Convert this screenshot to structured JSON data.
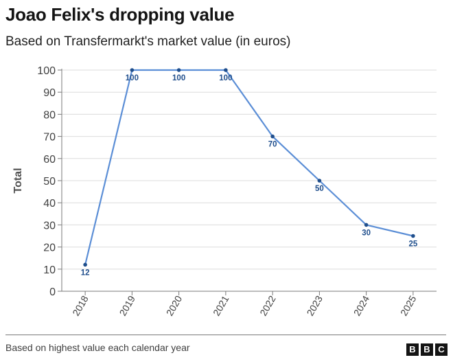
{
  "chart_data": {
    "type": "line",
    "title": "Joao Felix's dropping value",
    "subtitle": "Based on Transfermarkt's market value (in euros)",
    "xlabel": "",
    "ylabel": "Total",
    "ylim": [
      0,
      100
    ],
    "yticks": [
      0,
      10,
      20,
      30,
      40,
      50,
      60,
      70,
      80,
      90,
      100
    ],
    "x": [
      "2018",
      "2019",
      "2020",
      "2021",
      "2022",
      "2023",
      "2024",
      "2025"
    ],
    "series": [
      {
        "values": [
          12,
          100,
          100,
          100,
          70,
          50,
          30,
          25
        ]
      }
    ],
    "data_labels": [
      "12",
      "100",
      "100",
      "100",
      "70",
      "50",
      "30",
      "25"
    ],
    "grid": true,
    "line_color": "#5b8ed6",
    "label_color": "#1f4e8c"
  },
  "footer": {
    "source": "Based on highest value each calendar year",
    "brand_letters": [
      "B",
      "B",
      "C"
    ]
  }
}
